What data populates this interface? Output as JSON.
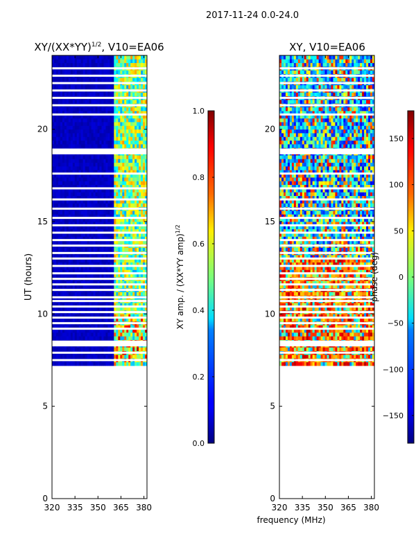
{
  "suptitle": "2017-11-24 0.0-24.0",
  "chart_data": [
    {
      "type": "heatmap",
      "title_main": "XY/(XX*YY)",
      "title_sup": "1/2",
      "title_rest": ", V10=EA06",
      "xlabel": "",
      "ylabel": "UT (hours)",
      "xlim": [
        320,
        382
      ],
      "ylim": [
        0,
        24
      ],
      "x_ticks": [
        "320",
        "335",
        "350",
        "365",
        "380"
      ],
      "y_ticks": [
        "0",
        "5",
        "10",
        "15",
        "20"
      ],
      "data_time_range_hours": [
        7.2,
        24.0
      ],
      "gap_rows_hours": [
        7.5,
        7.9,
        8.3,
        8.4,
        8.5,
        9.2,
        9.5,
        9.8,
        10.1,
        10.4,
        10.7,
        10.9,
        11.3,
        11.6,
        11.9,
        12.2,
        12.6,
        13.0,
        13.3,
        13.7,
        14.0,
        14.4,
        14.8,
        15.2,
        15.7,
        16.2,
        16.8,
        17.6,
        18.7,
        18.8,
        18.9,
        20.8,
        21.3,
        21.7,
        22.1,
        22.5,
        22.9,
        23.3
      ],
      "band_structure": "near-zero below ~361 MHz; bright vertical streaks between ~362 and ~380 MHz",
      "colorbar": {
        "label_main": "XY amp. / (XX*YY amp)",
        "label_sup": "1/2",
        "range": [
          0.0,
          1.0
        ],
        "ticks": [
          "0.0",
          "0.2",
          "0.4",
          "0.6",
          "0.8",
          "1.0"
        ],
        "colormap": "jet"
      }
    },
    {
      "type": "heatmap",
      "title": "XY, V10=EA06",
      "xlabel": "frequency (MHz)",
      "ylabel": "",
      "xlim": [
        320,
        382
      ],
      "ylim": [
        0,
        24
      ],
      "x_ticks": [
        "320",
        "335",
        "350",
        "365",
        "380"
      ],
      "y_ticks": [
        "0",
        "5",
        "10",
        "15",
        "20"
      ],
      "data_time_range_hours": [
        7.2,
        24.0
      ],
      "gap_rows_hours": [
        7.5,
        7.9,
        8.3,
        8.4,
        8.5,
        9.2,
        9.5,
        9.8,
        10.1,
        10.4,
        10.7,
        10.9,
        11.3,
        11.6,
        11.9,
        12.2,
        12.6,
        13.0,
        13.3,
        13.7,
        14.0,
        14.4,
        14.8,
        15.2,
        15.7,
        16.2,
        16.8,
        17.6,
        18.7,
        18.8,
        18.9,
        20.8,
        21.3,
        21.7,
        22.1,
        22.5,
        22.9,
        23.3
      ],
      "band_structure": "noisy phase; red/orange dominant for 7–13 UT, mixed blue/cyan above 18 UT",
      "colorbar": {
        "label": "phase (deg)",
        "range": [
          -180,
          180
        ],
        "ticks": [
          "−150",
          "−100",
          "−50",
          "0",
          "50",
          "100",
          "150"
        ],
        "colormap": "jet"
      }
    }
  ]
}
